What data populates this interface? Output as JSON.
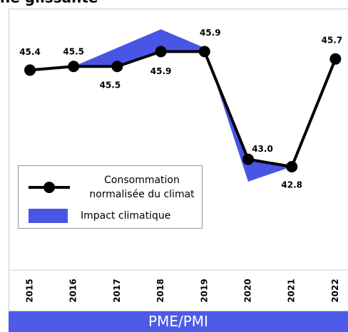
{
  "chart_data": {
    "type": "line",
    "title": "ne glissante",
    "categories": [
      "2015",
      "2016",
      "2017",
      "2018",
      "2019",
      "2020",
      "2021",
      "2022"
    ],
    "series": [
      {
        "name": "Consommation normalisée du climat",
        "color": "#000000",
        "style": "line",
        "values": [
          45.4,
          45.5,
          45.5,
          45.9,
          45.9,
          43.0,
          42.8,
          45.7
        ],
        "value_labels": [
          "45.4",
          "45.5",
          "45.5",
          "45.9",
          "45.9",
          "43.0",
          "42.8",
          "45.7"
        ]
      },
      {
        "name": "Impact climatique",
        "color": "#4a55e6",
        "style": "area",
        "values": [
          45.4,
          45.5,
          46.0,
          46.5,
          46.0,
          42.4,
          42.8,
          45.7
        ]
      }
    ],
    "ylim": [
      40,
      47
    ],
    "footer": "PME/PMI"
  }
}
